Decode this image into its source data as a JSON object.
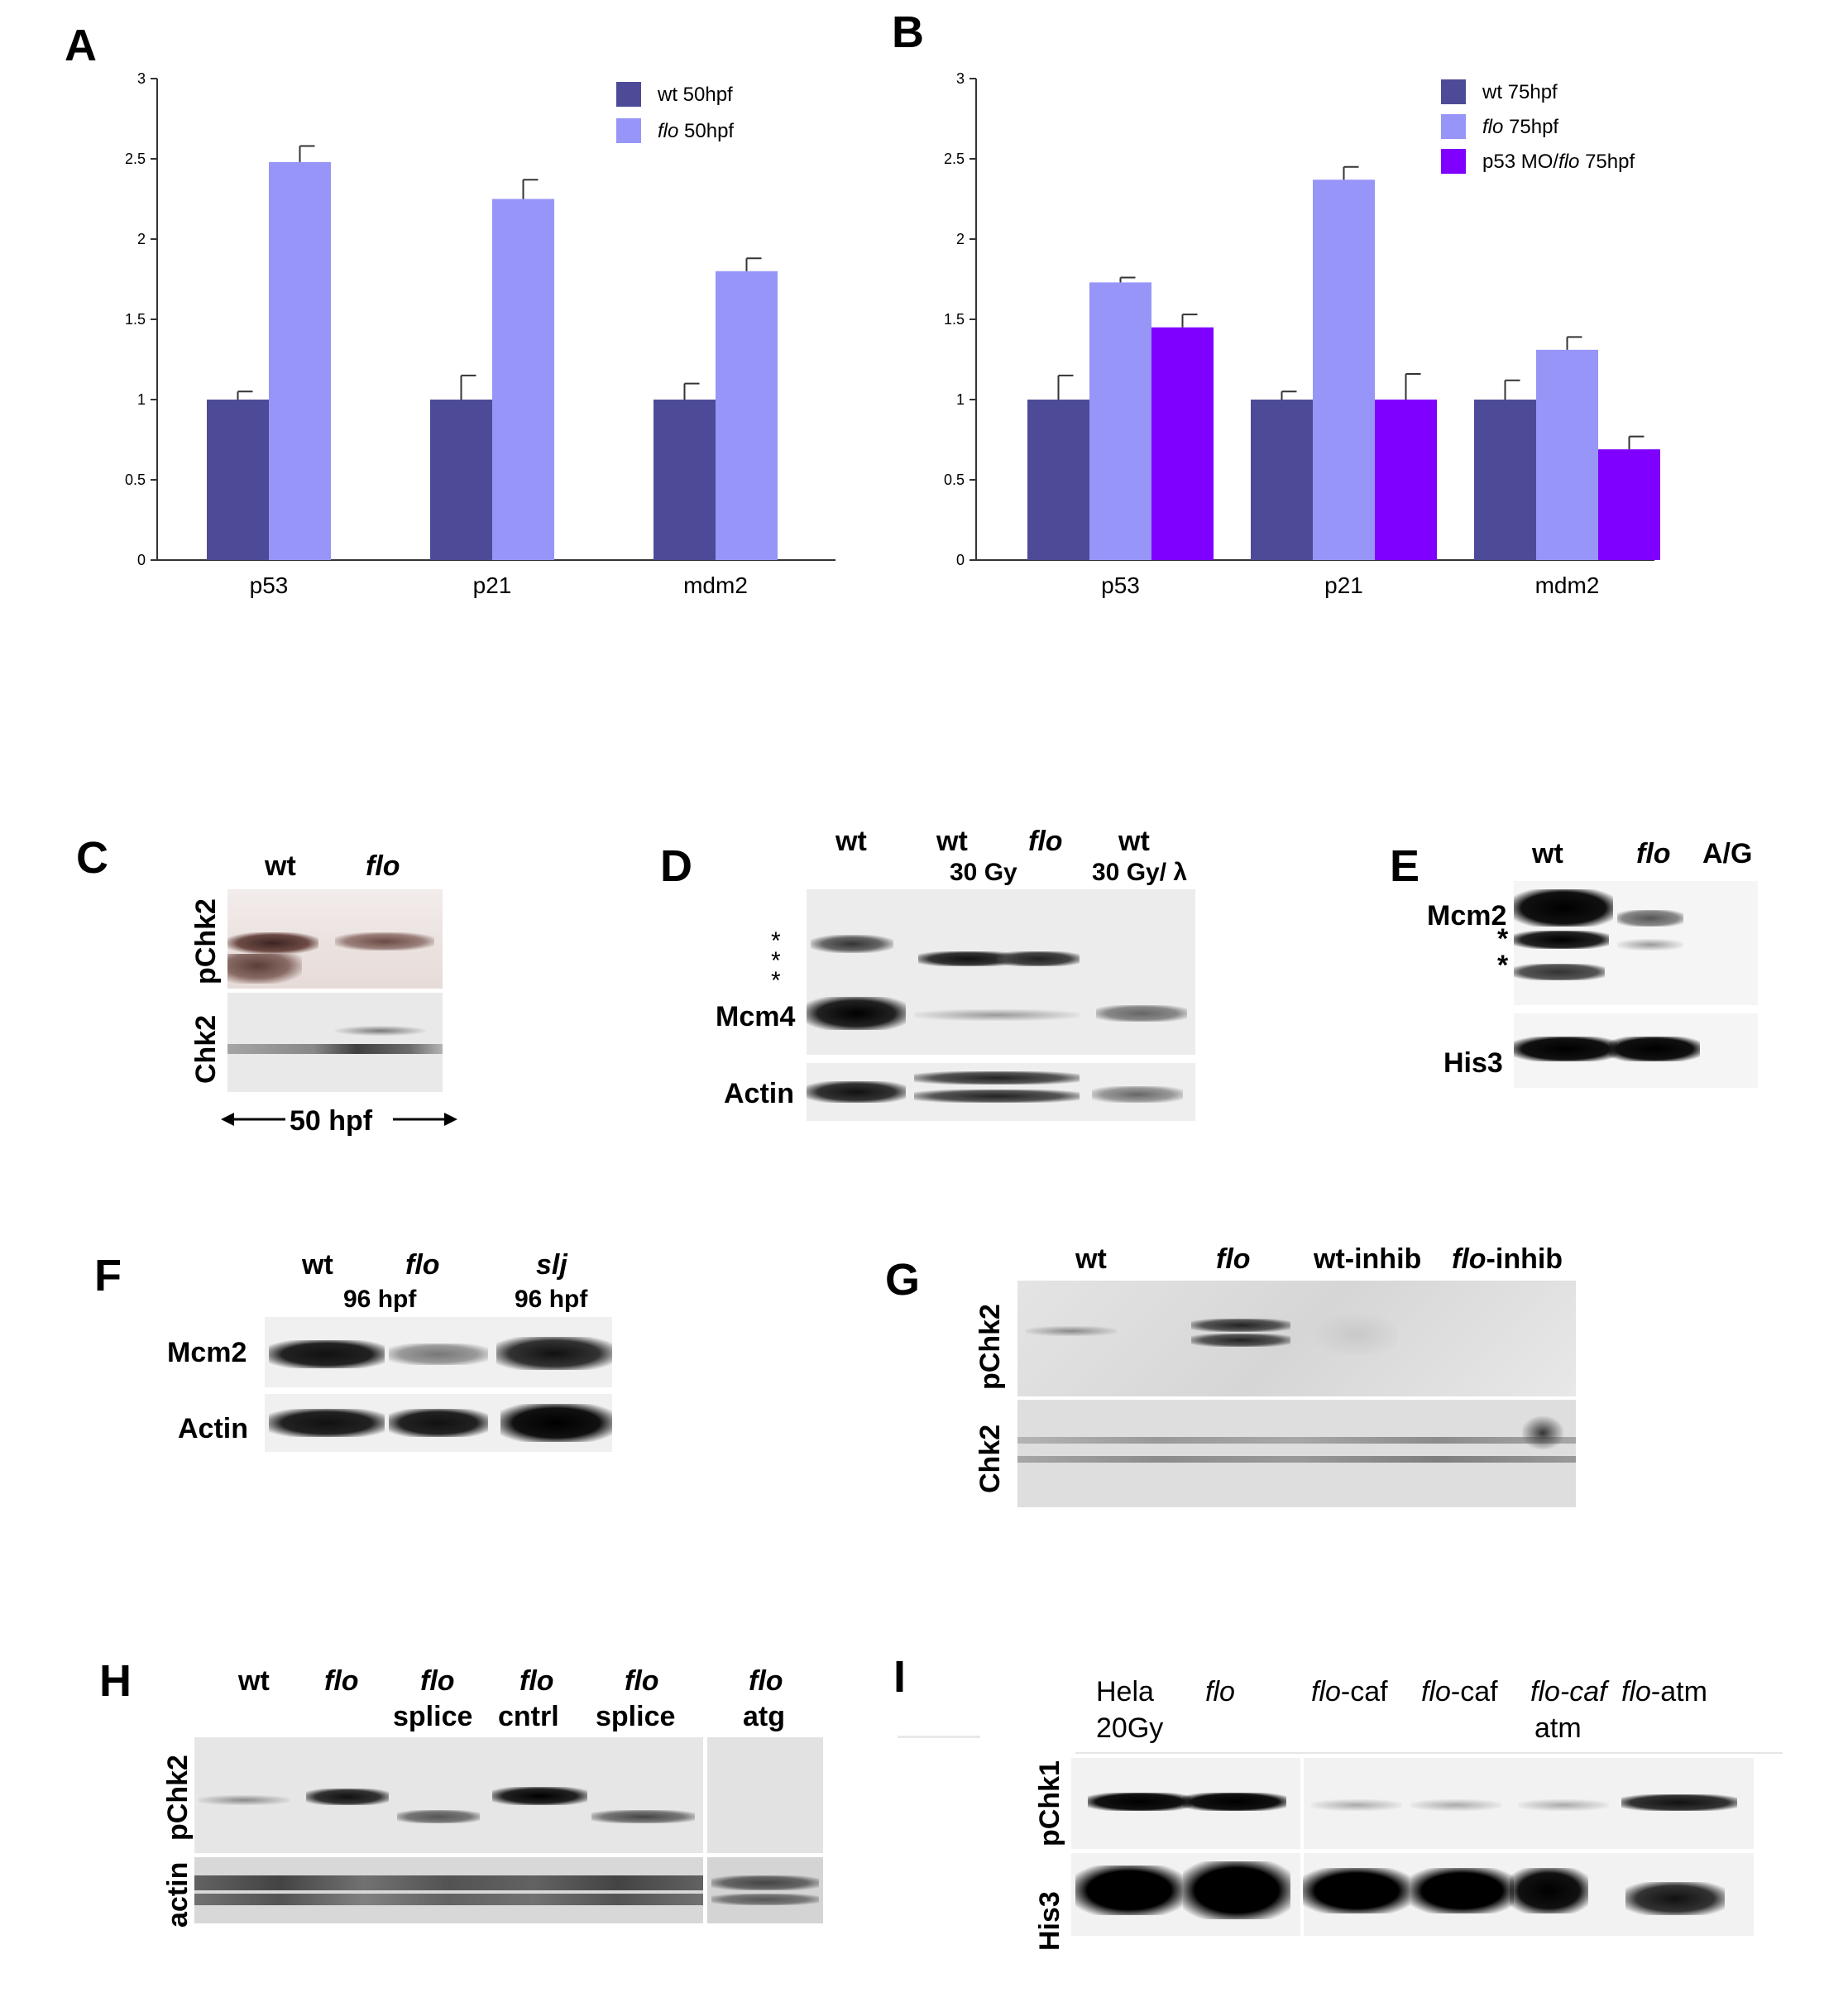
{
  "panels": {
    "A": "A",
    "B": "B",
    "C": "C",
    "D": "D",
    "E": "E",
    "F": "F",
    "G": "G",
    "H": "H",
    "I": "I"
  },
  "colors": {
    "wt": "#4d4b98",
    "flo": "#9795f8",
    "p53mo": "#7f00ff",
    "axis": "#333333"
  },
  "chart_data": [
    {
      "type": "bar",
      "panel": "A",
      "categories": [
        "p53",
        "p21",
        "mdm2"
      ],
      "ylim": [
        0,
        3
      ],
      "yticks": [
        "0",
        "0.5",
        "1",
        "1.5",
        "2",
        "2.5",
        "3"
      ],
      "series": [
        {
          "name": "wt 50hpf",
          "name_plain": "wt",
          "name_italic": "",
          "name_suffix": " 50hpf",
          "values": [
            1.0,
            1.0,
            1.0
          ],
          "errors": [
            0.05,
            0.15,
            0.1
          ]
        },
        {
          "name": "flo 50hpf",
          "name_plain": "",
          "name_italic": "flo",
          "name_suffix": " 50hpf",
          "values": [
            2.48,
            2.25,
            1.8
          ],
          "errors": [
            0.1,
            0.12,
            0.08
          ]
        }
      ]
    },
    {
      "type": "bar",
      "panel": "B",
      "categories": [
        "p53",
        "p21",
        "mdm2"
      ],
      "ylim": [
        0,
        3
      ],
      "yticks": [
        "0",
        "0.5",
        "1",
        "1.5",
        "2",
        "2.5",
        "3"
      ],
      "series": [
        {
          "name": "wt 75hpf",
          "name_plain": "wt",
          "name_italic": "",
          "name_suffix": " 75hpf",
          "values": [
            1.0,
            1.0,
            1.0
          ],
          "errors": [
            0.15,
            0.05,
            0.12
          ]
        },
        {
          "name": "flo 75hpf",
          "name_plain": "",
          "name_italic": "flo",
          "name_suffix": " 75hpf",
          "values": [
            1.73,
            2.37,
            1.31
          ],
          "errors": [
            0.03,
            0.08,
            0.08
          ]
        },
        {
          "name": "p53 MO/flo 75hpf",
          "name_plain": "p53 MO/",
          "name_italic": "flo",
          "name_suffix": " 75hpf",
          "values": [
            1.45,
            1.0,
            0.69
          ],
          "errors": [
            0.08,
            0.16,
            0.08
          ]
        }
      ]
    }
  ],
  "blots": {
    "C": {
      "wt": "wt",
      "flo": "flo",
      "row1": "pChk2",
      "row2": "Chk2",
      "time": "50 hpf"
    },
    "D": {
      "wt1": "wt",
      "wt2": "wt",
      "flo": "flo",
      "wt3": "wt",
      "dose1": "30 Gy",
      "dose2": "30 Gy/ λ",
      "asterisks": "*\n*\n*",
      "row1": "Mcm4",
      "row2": "Actin"
    },
    "E": {
      "wt": "wt",
      "flo": "flo",
      "ag": "A/G",
      "row1": "Mcm2",
      "ast1": "*",
      "ast2": "*",
      "row2": "His3"
    },
    "F": {
      "wt": "wt",
      "flo": "flo",
      "slj": "slj",
      "hpf1": "96 hpf",
      "hpf2": "96 hpf",
      "row1": "Mcm2",
      "row2": "Actin"
    },
    "G": {
      "wt": "wt",
      "flo": "flo",
      "wt_inhib": "wt-inhib",
      "flo_inhib_italic": "flo",
      "flo_inhib_suffix": "-inhib",
      "row1": "pChk2",
      "row2": "Chk2"
    },
    "H": {
      "wt": "wt",
      "flo": "flo",
      "flo2": "flo",
      "splice1": "splice",
      "flo3": "flo",
      "cntrl": "cntrl",
      "flo4": "flo",
      "splice2": "splice",
      "flo5": "flo",
      "atg": "atg",
      "row1": "pChk2",
      "row2": "actin"
    },
    "I": {
      "hela": "Hela",
      "gy": "20Gy",
      "flo": "flo",
      "flocaf1_it": "flo",
      "flocaf1_s": "-caf",
      "flocaf2_it": "flo",
      "flocaf2_s": "-caf",
      "flocaf3": "flo-caf",
      "atm": "atm",
      "floatm_it": "flo",
      "floatm_s": "-atm",
      "row1": "pChk1",
      "row2": "His3"
    }
  }
}
